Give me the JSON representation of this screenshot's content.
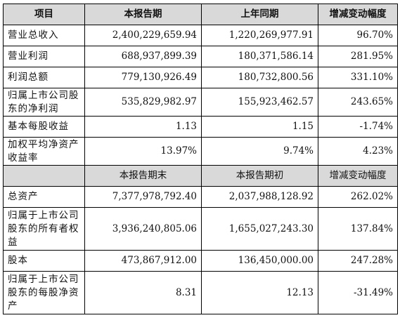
{
  "header": {
    "item": "项目",
    "current": "本报告期",
    "prior": "上年同期",
    "change": "增减变动幅度"
  },
  "rows_top": [
    {
      "label": "营业总收入",
      "current": "2,400,229,659.94",
      "prior": "1,220,269,977.91",
      "change": "96.70%"
    },
    {
      "label": "营业利润",
      "current": "688,937,899.39",
      "prior": "180,371,586.14",
      "change": "281.95%"
    },
    {
      "label": "利润总额",
      "current": "779,130,926.49",
      "prior": "180,732,800.56",
      "change": "331.10%"
    },
    {
      "label": "归属上市公司股东的净利润",
      "current": "535,829,982.97",
      "prior": "155,923,462.57",
      "change": "243.65%"
    },
    {
      "label": "基本每股收益",
      "current": "1.13",
      "prior": "1.15",
      "change": "-1.74%"
    },
    {
      "label": "加权平均净资产收益率",
      "current": "13.97%",
      "prior": "9.74%",
      "change": "4.23%"
    }
  ],
  "subheader": {
    "item": "",
    "current": "本报告期末",
    "prior": "本报告期初",
    "change": "增减变动幅度"
  },
  "rows_bottom": [
    {
      "label": "总资产",
      "current": "7,377,978,792.40",
      "prior": "2,037,988,128.92",
      "change": "262.02%"
    },
    {
      "label": "归属于上市公司股东的所有者权益",
      "current": "3,936,240,805.06",
      "prior": "1,655,027,243.30",
      "change": "137.84%"
    },
    {
      "label": "股本",
      "current": "473,867,912.00",
      "prior": "136,450,000.00",
      "change": "247.28%"
    },
    {
      "label": "归属于上市公司股东的每股净资产",
      "current": "8.31",
      "prior": "12.13",
      "change": "-31.49%"
    }
  ]
}
